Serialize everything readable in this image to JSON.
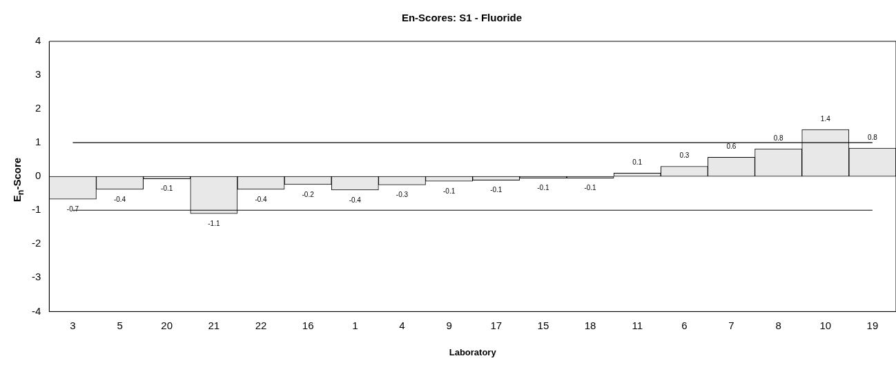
{
  "chart_data": {
    "type": "bar",
    "title": "En-Scores: S1 - Fluoride",
    "xlabel": "Laboratory",
    "ylabel": "E$_{n}$-Score",
    "categories": [
      "3",
      "5",
      "20",
      "21",
      "22",
      "16",
      "1",
      "4",
      "9",
      "17",
      "15",
      "18",
      "11",
      "6",
      "7",
      "8",
      "10",
      "19"
    ],
    "values": [
      -0.67,
      -0.38,
      -0.07,
      -1.1,
      -0.38,
      -0.24,
      -0.4,
      -0.25,
      -0.14,
      -0.11,
      -0.05,
      -0.05,
      0.1,
      0.3,
      0.57,
      0.82,
      1.39,
      0.84
    ],
    "value_labels": [
      "-0.7",
      "-0.4",
      "-0.1",
      "-1.1",
      "-0.4",
      "-0.2",
      "-0.4",
      "-0.3",
      "-0.1",
      "-0.1",
      "-0.1",
      "-0.1",
      "0.1",
      "0.3",
      "0.6",
      "0.8",
      "1.4",
      "0.8"
    ],
    "color": "#e8e8e8",
    "ylim": [
      -4,
      4
    ],
    "yticks": [
      -4,
      -3,
      -2,
      -1,
      0,
      1,
      2,
      3,
      4
    ],
    "ref_lines": [
      {
        "axis": "y",
        "value": 1,
        "color": "#000000"
      },
      {
        "axis": "y",
        "value": -1,
        "color": "#000000"
      }
    ],
    "grid": false,
    "legend": false
  }
}
